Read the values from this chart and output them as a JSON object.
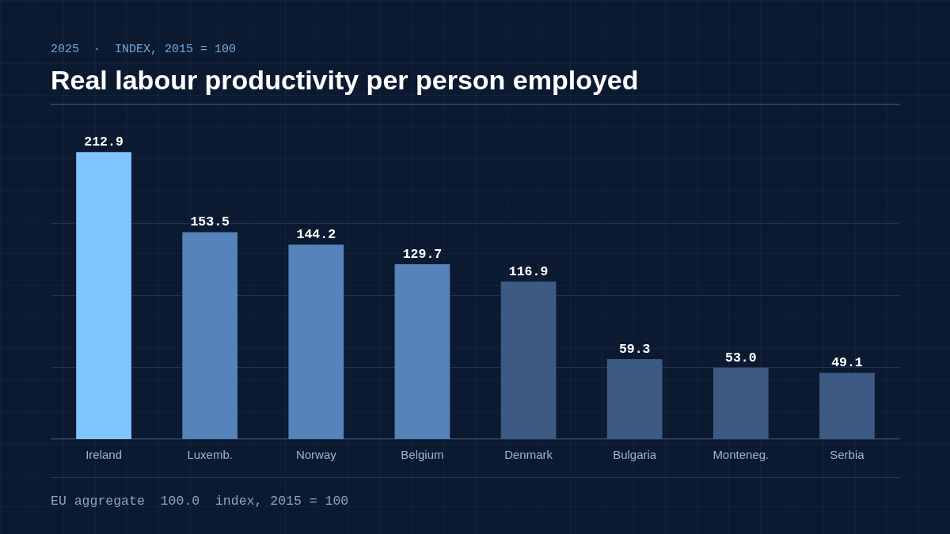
{
  "chart_data": {
    "type": "bar",
    "title": "Real labour productivity per person employed",
    "subtitle": "2025  ·  INDEX, 2015 = 100",
    "categories": [
      "Ireland",
      "Luxemb.",
      "Norway",
      "Belgium",
      "Denmark",
      "Bulgaria",
      "Monteneg.",
      "Serbia"
    ],
    "values": [
      212.9,
      153.5,
      144.2,
      129.7,
      116.9,
      59.3,
      53.0,
      49.1
    ],
    "value_labels": [
      "212.9",
      "153.5",
      "144.2",
      "129.7",
      "116.9",
      "59.3",
      "53.0",
      "49.1"
    ],
    "colors": [
      "#80c4ff",
      "#5583ba",
      "#5583ba",
      "#5583ba",
      "#3d5a82",
      "#3d5a82",
      "#3d5a82",
      "#3d5a82"
    ],
    "ylim": [
      0,
      213
    ],
    "yticks": [
      {
        "value": 53.25,
        "label": null
      },
      {
        "value": 106.5,
        "label": null
      },
      {
        "value": 159.75,
        "label": null
      }
    ],
    "grid": "y",
    "tick_labels": "x",
    "annotations": [
      "EU aggregate  100.0  index, 2015 = 100"
    ]
  }
}
